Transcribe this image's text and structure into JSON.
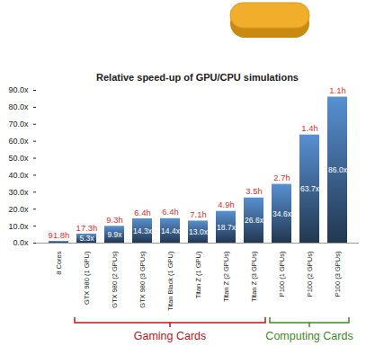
{
  "chart_data": {
    "type": "bar",
    "title": "Relative speed-up of GPU/CPU simulations",
    "categories": [
      "8 Cores",
      "GTX 980 (1 GPU)",
      "GTX 980 (2 GPUs)",
      "GTX 980 (3 GPUs)",
      "Titan Black (1 GPU)",
      "Titan Z (1 GPU)",
      "Titan Z (2 GPUs)",
      "Titan Z (3 GPUs)",
      "P100 (1 GPUs)",
      "P100 (2 GPUs)",
      "P100 (3 GPUs)"
    ],
    "values": [
      1.0,
      5.3,
      9.9,
      14.3,
      14.4,
      13.0,
      18.7,
      26.6,
      34.6,
      63.7,
      86.0
    ],
    "value_labels": [
      null,
      "5.3x",
      "9.9x",
      "14.3x",
      "14.4x",
      "13.0x",
      "18.7x",
      "26.6x",
      "34.6x",
      "63.7x",
      "86.0x"
    ],
    "data_labels": true,
    "color": "#4f81bd",
    "ylim": [
      0,
      90
    ],
    "yticks": [
      {
        "value": 0,
        "label": "0.0x"
      },
      {
        "value": 10,
        "label": "10.0x"
      },
      {
        "value": 20,
        "label": "20.0x"
      },
      {
        "value": 30,
        "label": "30.0x"
      },
      {
        "value": 40,
        "label": "40.0x"
      },
      {
        "value": 50,
        "label": "50.0x"
      },
      {
        "value": 60,
        "label": "60.0x"
      },
      {
        "value": 70,
        "label": "70.0x"
      },
      {
        "value": 80,
        "label": "80.0x"
      },
      {
        "value": 90,
        "label": "90.0x"
      }
    ],
    "grid": false,
    "time_labels": {
      "labels": [
        "91.8h",
        "17.3h",
        "9.3h",
        "6.4h",
        "6.4h",
        "7.1h",
        "4.9h",
        "3.5h",
        "2.7h",
        "1.4h",
        "1.1h"
      ],
      "color": "#e8302a"
    },
    "groups": [
      {
        "label": "Gaming Cards",
        "color": "#c0141c",
        "categories": [
          "GTX 980 (1 GPU)",
          "GTX 980 (2 GPUs)",
          "GTX 980 (3 GPUs)",
          "Titan Black (1 GPU)",
          "Titan Z (1 GPU)",
          "Titan Z (2 GPUs)",
          "Titan Z (3 GPUs)"
        ]
      },
      {
        "label": "Computing Cards",
        "color": "#3f8a1e",
        "categories": [
          "P100 (1 GPUs)",
          "P100 (2 GPUs)",
          "P100 (3 GPUs)"
        ]
      }
    ]
  }
}
